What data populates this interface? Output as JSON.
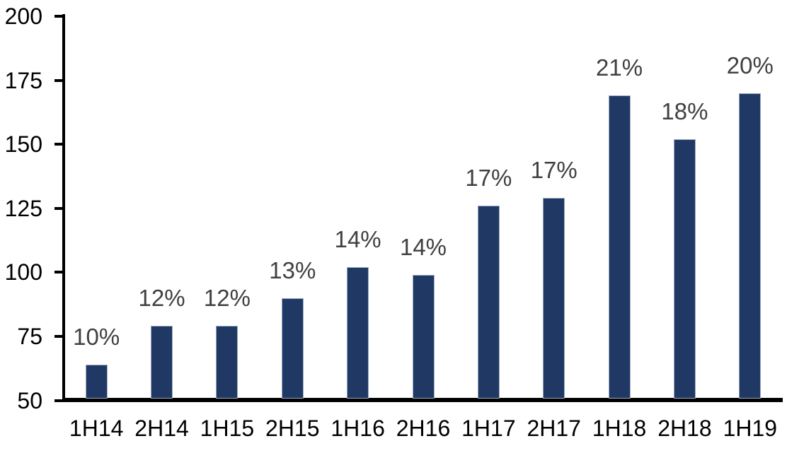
{
  "chart_data": {
    "type": "bar",
    "title": "",
    "xlabel": "",
    "ylabel": "",
    "categories": [
      "1H14",
      "2H14",
      "1H15",
      "2H15",
      "1H16",
      "2H16",
      "1H17",
      "2H17",
      "1H18",
      "2H18",
      "1H19"
    ],
    "values": [
      64,
      79,
      79,
      90,
      102,
      99,
      126,
      129,
      169,
      152,
      170
    ],
    "bar_labels": [
      "10%",
      "12%",
      "12%",
      "13%",
      "14%",
      "14%",
      "17%",
      "17%",
      "21%",
      "18%",
      "20%"
    ],
    "ylim": [
      50,
      200
    ],
    "yticks": [
      50,
      75,
      100,
      125,
      150,
      175,
      200
    ],
    "grid": false,
    "legend": false,
    "colors": {
      "bar": "#1F3864",
      "bar_edge": "#9DABC0",
      "value_label": "#404040",
      "axis": "#000000",
      "tick_label": "#000000",
      "background": "#FFFFFF"
    }
  }
}
